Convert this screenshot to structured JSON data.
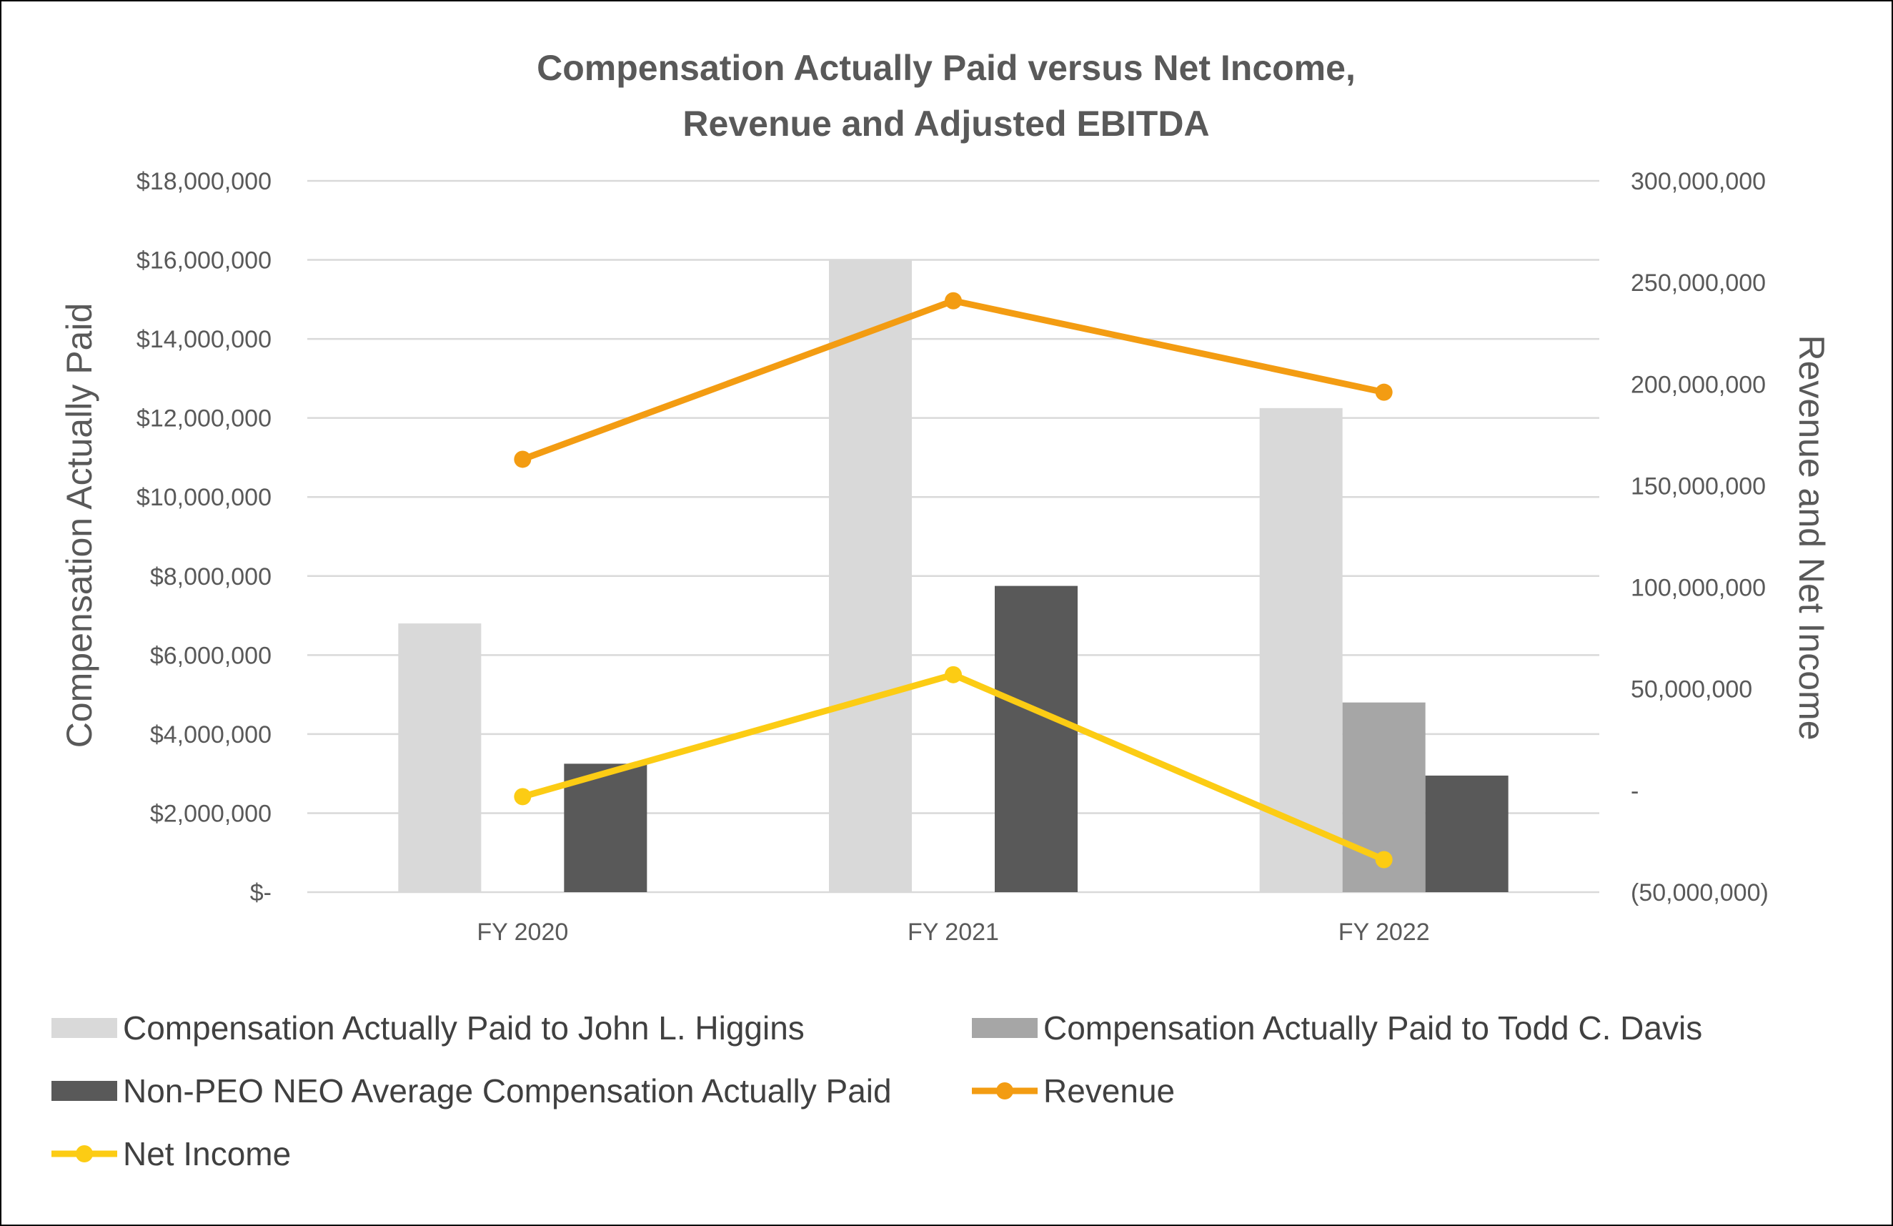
{
  "chart_data": {
    "type": "bar",
    "title": [
      "Compensation Actually Paid versus Net Income,",
      "Revenue and Adjusted EBITDA"
    ],
    "categories": [
      "FY 2020",
      "FY 2021",
      "FY 2022"
    ],
    "ylabel": "Compensation Actually Paid",
    "y2label": "Revenue and Net Income",
    "ylim": [
      0,
      18000000
    ],
    "y2lim": [
      -50000000,
      300000000
    ],
    "yticks": [
      {
        "value": 0,
        "label": "$-"
      },
      {
        "value": 2000000,
        "label": "$2,000,000"
      },
      {
        "value": 4000000,
        "label": "$4,000,000"
      },
      {
        "value": 6000000,
        "label": "$6,000,000"
      },
      {
        "value": 8000000,
        "label": "$8,000,000"
      },
      {
        "value": 10000000,
        "label": "$10,000,000"
      },
      {
        "value": 12000000,
        "label": "$12,000,000"
      },
      {
        "value": 14000000,
        "label": "$14,000,000"
      },
      {
        "value": 16000000,
        "label": "$16,000,000"
      },
      {
        "value": 18000000,
        "label": "$18,000,000"
      }
    ],
    "y2ticks": [
      {
        "value": -50000000,
        "label": "(50,000,000)"
      },
      {
        "value": 0,
        "label": "-"
      },
      {
        "value": 50000000,
        "label": "50,000,000"
      },
      {
        "value": 100000000,
        "label": "100,000,000"
      },
      {
        "value": 150000000,
        "label": "150,000,000"
      },
      {
        "value": 200000000,
        "label": "200,000,000"
      },
      {
        "value": 250000000,
        "label": "250,000,000"
      },
      {
        "value": 300000000,
        "label": "300,000,000"
      }
    ],
    "grid": true,
    "legend_position": "bottom",
    "bar_series": [
      {
        "name": "Compensation Actually Paid to John L. Higgins",
        "color": "#d9d9d9",
        "values": [
          6800000,
          16000000,
          12250000
        ]
      },
      {
        "name": "Compensation Actually Paid to Todd C. Davis",
        "color": "#a6a6a6",
        "values": [
          null,
          null,
          4800000
        ]
      },
      {
        "name": "Non-PEO NEO Average Compensation Actually Paid",
        "color": "#595959",
        "values": [
          3250000,
          7750000,
          2950000
        ]
      }
    ],
    "line_series": [
      {
        "name": "Revenue",
        "color": "#f39c12",
        "axis": "right",
        "values": [
          163000000,
          241000000,
          196000000
        ]
      },
      {
        "name": "Net Income",
        "color": "#fccc14",
        "axis": "right",
        "values": [
          -3000000,
          57000000,
          -34000000
        ]
      }
    ],
    "legend": [
      {
        "name": "Compensation Actually Paid to John L. Higgins",
        "kind": "bar",
        "color": "#d9d9d9"
      },
      {
        "name": "Compensation Actually Paid to Todd C. Davis",
        "kind": "bar",
        "color": "#a6a6a6"
      },
      {
        "name": "Non-PEO NEO Average Compensation Actually Paid",
        "kind": "bar",
        "color": "#595959"
      },
      {
        "name": "Revenue",
        "kind": "line",
        "color": "#f39c12"
      },
      {
        "name": "Net Income",
        "kind": "line",
        "color": "#fccc14"
      }
    ]
  }
}
